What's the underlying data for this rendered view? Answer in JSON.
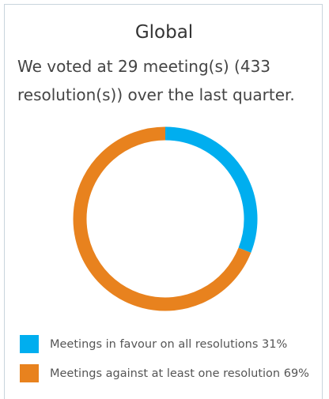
{
  "chart_data": {
    "type": "donut",
    "title": "Global",
    "subtitle": "We voted at 29 meeting(s) (433 resolution(s)) over the last quarter.",
    "categories": [
      "Meetings in favour on all resolutions",
      "Meetings against at least one resolution"
    ],
    "values": [
      31,
      69
    ],
    "value_labels": [
      "31%",
      "69%"
    ],
    "colors": [
      "#00aeef",
      "#e8821e"
    ],
    "legend": "bottom"
  }
}
